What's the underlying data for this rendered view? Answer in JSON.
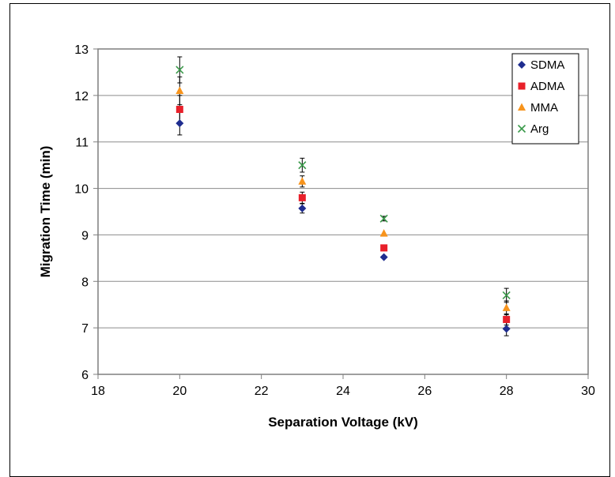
{
  "chart_data": {
    "type": "scatter",
    "xlabel": "Separation Voltage (kV)",
    "ylabel": "Migration Time (min)",
    "xlim": [
      18,
      30
    ],
    "ylim": [
      6,
      13
    ],
    "xticks": [
      "18",
      "20",
      "22",
      "24",
      "26",
      "28",
      "30"
    ],
    "yticks": [
      "6",
      "7",
      "8",
      "9",
      "10",
      "11",
      "12",
      "13"
    ],
    "grid": "horizontal",
    "legend_position": "top-right",
    "series": [
      {
        "name": "SDMA",
        "color": "#1f2d8f",
        "marker": "diamond",
        "points": [
          {
            "x": 20,
            "y": 11.4,
            "err": 0.25
          },
          {
            "x": 23,
            "y": 9.57,
            "err": 0.1
          },
          {
            "x": 25,
            "y": 8.52,
            "err": 0.0
          },
          {
            "x": 28,
            "y": 6.98,
            "err": 0.15
          }
        ]
      },
      {
        "name": "ADMA",
        "color": "#e8202a",
        "marker": "square",
        "points": [
          {
            "x": 20,
            "y": 11.7,
            "err": 0.3
          },
          {
            "x": 23,
            "y": 9.8,
            "err": 0.12
          },
          {
            "x": 25,
            "y": 8.72,
            "err": 0.0
          },
          {
            "x": 28,
            "y": 7.18,
            "err": 0.12
          }
        ]
      },
      {
        "name": "MMA",
        "color": "#f7941d",
        "marker": "triangle",
        "points": [
          {
            "x": 20,
            "y": 12.1,
            "err": 0.3
          },
          {
            "x": 23,
            "y": 10.15,
            "err": 0.12
          },
          {
            "x": 25,
            "y": 9.03,
            "err": 0.0
          },
          {
            "x": 28,
            "y": 7.43,
            "err": 0.15
          }
        ]
      },
      {
        "name": "Arg",
        "color": "#3a9a4a",
        "marker": "x",
        "points": [
          {
            "x": 20,
            "y": 12.55,
            "err": 0.28
          },
          {
            "x": 23,
            "y": 10.5,
            "err": 0.15
          },
          {
            "x": 25,
            "y": 9.35,
            "err": 0.05
          },
          {
            "x": 28,
            "y": 7.7,
            "err": 0.15
          }
        ]
      }
    ]
  }
}
